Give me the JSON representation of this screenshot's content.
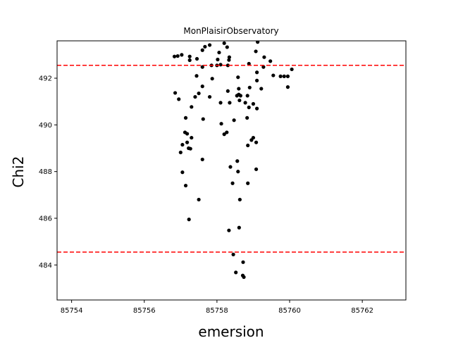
{
  "chart_data": {
    "type": "scatter",
    "title": "MonPlaisirObservatory",
    "xlabel": "emersion",
    "ylabel": "Chi2",
    "xlim": [
      85753.6,
      85763.2
    ],
    "ylim": [
      482.5,
      493.6
    ],
    "xticks": [
      85754,
      85756,
      85758,
      85760,
      85762
    ],
    "yticks": [
      484,
      486,
      488,
      490,
      492
    ],
    "grid": false,
    "hlines": [
      {
        "y": 492.55,
        "color": "#ff0000",
        "style": "dashed"
      },
      {
        "y": 484.55,
        "color": "#ff0000",
        "style": "dashed"
      }
    ],
    "series": [
      {
        "color": "#000000",
        "points": [
          [
            85756.83,
            492.93
          ],
          [
            85756.92,
            492.95
          ],
          [
            85757.03,
            493.0
          ],
          [
            85757.25,
            492.77
          ],
          [
            85757.25,
            492.93
          ],
          [
            85757.45,
            492.83
          ],
          [
            85757.6,
            493.2
          ],
          [
            85757.67,
            493.35
          ],
          [
            85757.8,
            493.42
          ],
          [
            85757.6,
            492.48
          ],
          [
            85757.85,
            492.55
          ],
          [
            85758.0,
            492.55
          ],
          [
            85758.02,
            492.8
          ],
          [
            85758.06,
            493.1
          ],
          [
            85758.1,
            492.58
          ],
          [
            85758.2,
            493.5
          ],
          [
            85758.28,
            493.33
          ],
          [
            85758.34,
            492.9
          ],
          [
            85758.33,
            492.78
          ],
          [
            85758.3,
            492.55
          ],
          [
            85758.58,
            492.04
          ],
          [
            85758.88,
            492.62
          ],
          [
            85759.07,
            493.15
          ],
          [
            85759.12,
            493.55
          ],
          [
            85759.3,
            492.9
          ],
          [
            85759.47,
            492.73
          ],
          [
            85759.55,
            492.12
          ],
          [
            85759.28,
            492.48
          ],
          [
            85759.1,
            492.25
          ],
          [
            85759.1,
            491.9
          ],
          [
            85759.75,
            492.08
          ],
          [
            85759.85,
            492.08
          ],
          [
            85759.95,
            492.08
          ],
          [
            85760.06,
            492.38
          ],
          [
            85759.95,
            491.62
          ],
          [
            85757.44,
            492.1
          ],
          [
            85757.87,
            491.98
          ],
          [
            85756.85,
            491.37
          ],
          [
            85756.95,
            491.1
          ],
          [
            85757.4,
            491.2
          ],
          [
            85757.5,
            491.35
          ],
          [
            85757.6,
            491.65
          ],
          [
            85757.8,
            491.2
          ],
          [
            85757.3,
            490.77
          ],
          [
            85757.14,
            490.3
          ],
          [
            85757.62,
            490.25
          ],
          [
            85758.1,
            490.95
          ],
          [
            85758.3,
            491.45
          ],
          [
            85758.35,
            490.95
          ],
          [
            85758.55,
            491.25
          ],
          [
            85758.6,
            491.55
          ],
          [
            85758.6,
            491.3
          ],
          [
            85758.65,
            491.25
          ],
          [
            85758.62,
            491.05
          ],
          [
            85758.78,
            490.95
          ],
          [
            85758.88,
            490.75
          ],
          [
            85758.84,
            491.25
          ],
          [
            85758.9,
            491.6
          ],
          [
            85759.0,
            490.9
          ],
          [
            85759.1,
            490.7
          ],
          [
            85759.22,
            491.55
          ],
          [
            85758.12,
            490.05
          ],
          [
            85758.2,
            489.6
          ],
          [
            85758.27,
            489.68
          ],
          [
            85758.47,
            490.2
          ],
          [
            85758.83,
            490.3
          ],
          [
            85757.12,
            489.68
          ],
          [
            85757.18,
            489.62
          ],
          [
            85757.3,
            489.45
          ],
          [
            85757.18,
            489.25
          ],
          [
            85757.05,
            489.15
          ],
          [
            85757.0,
            488.82
          ],
          [
            85757.27,
            488.98
          ],
          [
            85757.22,
            489.0
          ],
          [
            85757.6,
            488.52
          ],
          [
            85758.85,
            489.12
          ],
          [
            85758.95,
            489.35
          ],
          [
            85759.0,
            489.45
          ],
          [
            85759.08,
            489.25
          ],
          [
            85758.56,
            488.45
          ],
          [
            85758.37,
            488.2
          ],
          [
            85758.58,
            488.0
          ],
          [
            85759.08,
            488.1
          ],
          [
            85757.05,
            487.97
          ],
          [
            85757.14,
            487.4
          ],
          [
            85758.43,
            487.5
          ],
          [
            85758.85,
            487.5
          ],
          [
            85757.5,
            486.8
          ],
          [
            85758.63,
            486.8
          ],
          [
            85757.23,
            485.95
          ],
          [
            85758.61,
            485.6
          ],
          [
            85758.33,
            485.48
          ],
          [
            85758.45,
            484.45
          ],
          [
            85758.72,
            484.12
          ],
          [
            85758.52,
            483.68
          ],
          [
            85758.71,
            483.55
          ],
          [
            85758.74,
            483.48
          ]
        ]
      }
    ]
  }
}
